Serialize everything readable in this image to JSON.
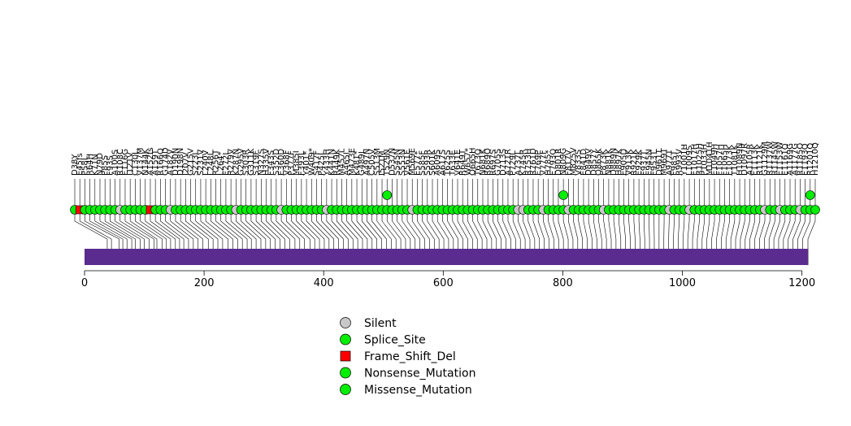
{
  "chart_data": {
    "type": "lollipop",
    "xlim": [
      0,
      1210
    ],
    "xticks": [
      0,
      200,
      400,
      600,
      800,
      1000,
      1200
    ],
    "colors": {
      "Silent": "#c8c8c8",
      "Splice_Site": "#00ee00",
      "Frame_Shift_Del": "#ff0000",
      "Nonsense_Mutation": "#00ee00",
      "Missense_Mutation": "#00ee00",
      "domain": "#5b2c8f"
    },
    "legend": [
      {
        "label": "Silent",
        "shape": "circle",
        "color": "#c8c8c8"
      },
      {
        "label": "Splice_Site",
        "shape": "circle",
        "color": "#00ee00"
      },
      {
        "label": "Frame_Shift_Del",
        "shape": "square",
        "color": "#ff0000"
      },
      {
        "label": "Nonsense_Mutation",
        "shape": "circle",
        "color": "#00ee00"
      },
      {
        "label": "Missense_Mutation",
        "shape": "circle",
        "color": "#00ee00"
      }
    ],
    "highlights": [
      {
        "position": 528,
        "type": "Missense_Mutation"
      },
      {
        "position": 808,
        "type": "Missense_Mutation"
      },
      {
        "position": 1200,
        "type": "Missense_Mutation"
      }
    ],
    "mutations": [
      {
        "position": 38,
        "label": "D38Y",
        "type": "Missense_Mutation"
      },
      {
        "position": 45,
        "label": "E45fs",
        "type": "Frame_Shift_Del"
      },
      {
        "position": 58,
        "label": "P58L",
        "type": "Missense_Mutation"
      },
      {
        "position": 64,
        "label": "R64H",
        "type": "Missense_Mutation"
      },
      {
        "position": 71,
        "label": "K71N",
        "type": "Missense_Mutation"
      },
      {
        "position": 79,
        "label": "N79D",
        "type": "Missense_Mutation"
      },
      {
        "position": 85,
        "label": "P85S",
        "type": "Missense_Mutation"
      },
      {
        "position": 93,
        "label": "F93S",
        "type": "Missense_Mutation"
      },
      {
        "position": 100,
        "label": "A100S",
        "type": "Missense_Mutation"
      },
      {
        "position": 108,
        "label": "R108C",
        "type": "Silent"
      },
      {
        "position": 116,
        "label": "E116G",
        "type": "Missense_Mutation"
      },
      {
        "position": 121,
        "label": "I121V",
        "type": "Missense_Mutation"
      },
      {
        "position": 130,
        "label": "C130L",
        "type": "Missense_Mutation"
      },
      {
        "position": 137,
        "label": "V137M",
        "type": "Missense_Mutation"
      },
      {
        "position": 144,
        "label": "N144K",
        "type": "Missense_Mutation"
      },
      {
        "position": 152,
        "label": "A152fs",
        "type": "Frame_Shift_Del"
      },
      {
        "position": 159,
        "label": "A159T",
        "type": "Missense_Mutation"
      },
      {
        "position": 166,
        "label": "R166Q",
        "type": "Missense_Mutation"
      },
      {
        "position": 174,
        "label": "G174D",
        "type": "Missense_Mutation"
      },
      {
        "position": 182,
        "label": "A182V",
        "type": "Silent"
      },
      {
        "position": 190,
        "label": "D190N",
        "type": "Missense_Mutation"
      },
      {
        "position": 198,
        "label": "D198N",
        "type": "Missense_Mutation"
      },
      {
        "position": 207,
        "label": "I207V",
        "type": "Missense_Mutation"
      },
      {
        "position": 215,
        "label": "G215V",
        "type": "Missense_Mutation"
      },
      {
        "position": 223,
        "label": "S223L",
        "type": "Missense_Mutation"
      },
      {
        "position": 231,
        "label": "S231V",
        "type": "Missense_Mutation"
      },
      {
        "position": 240,
        "label": "L240V",
        "type": "Missense_Mutation"
      },
      {
        "position": 248,
        "label": "L248L",
        "type": "Missense_Mutation"
      },
      {
        "position": 256,
        "label": "R256T",
        "type": "Missense_Mutation"
      },
      {
        "position": 264,
        "label": "L264*",
        "type": "Nonsense_Mutation"
      },
      {
        "position": 272,
        "label": "E272L",
        "type": "Missense_Mutation"
      },
      {
        "position": 279,
        "label": "R279V",
        "type": "Missense_Mutation"
      },
      {
        "position": 287,
        "label": "K287N",
        "type": "Silent"
      },
      {
        "position": 295,
        "label": "G295V",
        "type": "Missense_Mutation"
      },
      {
        "position": 303,
        "label": "S303R",
        "type": "Missense_Mutation"
      },
      {
        "position": 311,
        "label": "G311K",
        "type": "Missense_Mutation"
      },
      {
        "position": 319,
        "label": "S319F",
        "type": "Missense_Mutation"
      },
      {
        "position": 327,
        "label": "N327S",
        "type": "Missense_Mutation"
      },
      {
        "position": 335,
        "label": "H335V",
        "type": "Missense_Mutation"
      },
      {
        "position": 343,
        "label": "F343S",
        "type": "Missense_Mutation"
      },
      {
        "position": 352,
        "label": "S352D",
        "type": "Missense_Mutation"
      },
      {
        "position": 360,
        "label": "E360D",
        "type": "Silent"
      },
      {
        "position": 368,
        "label": "V368F",
        "type": "Missense_Mutation"
      },
      {
        "position": 377,
        "label": "P377F",
        "type": "Missense_Mutation"
      },
      {
        "position": 385,
        "label": "M385I",
        "type": "Missense_Mutation"
      },
      {
        "position": 393,
        "label": "F393L",
        "type": "Missense_Mutation"
      },
      {
        "position": 401,
        "label": "Y401*",
        "type": "Nonsense_Mutation"
      },
      {
        "position": 409,
        "label": "W409*",
        "type": "Nonsense_Mutation"
      },
      {
        "position": 417,
        "label": "S417F",
        "type": "Missense_Mutation"
      },
      {
        "position": 425,
        "label": "P425L",
        "type": "Missense_Mutation"
      },
      {
        "position": 433,
        "label": "Y433H",
        "type": "Silent"
      },
      {
        "position": 441,
        "label": "K441N",
        "type": "Missense_Mutation"
      },
      {
        "position": 449,
        "label": "R449K",
        "type": "Missense_Mutation"
      },
      {
        "position": 457,
        "label": "M457L",
        "type": "Missense_Mutation"
      },
      {
        "position": 465,
        "label": "A465I",
        "type": "Missense_Mutation"
      },
      {
        "position": 473,
        "label": "M473E",
        "type": "Missense_Mutation"
      },
      {
        "position": 481,
        "label": "K481*",
        "type": "Nonsense_Mutation"
      },
      {
        "position": 489,
        "label": "G489L",
        "type": "Missense_Mutation"
      },
      {
        "position": 497,
        "label": "A497N",
        "type": "Missense_Mutation"
      },
      {
        "position": 505,
        "label": "C505V",
        "type": "Missense_Mutation"
      },
      {
        "position": 513,
        "label": "S513M",
        "type": "Missense_Mutation"
      },
      {
        "position": 521,
        "label": "I521M",
        "type": "Missense_Mutation"
      },
      {
        "position": 529,
        "label": "T529N",
        "type": "Missense_Mutation"
      },
      {
        "position": 537,
        "label": "D537N",
        "type": "Missense_Mutation"
      },
      {
        "position": 545,
        "label": "S545N",
        "type": "Missense_Mutation"
      },
      {
        "position": 553,
        "label": "S553N",
        "type": "Missense_Mutation"
      },
      {
        "position": 561,
        "label": "V561E",
        "type": "Missense_Mutation"
      },
      {
        "position": 569,
        "label": "M569E",
        "type": "Silent"
      },
      {
        "position": 577,
        "label": "E577*",
        "type": "Nonsense_Mutation"
      },
      {
        "position": 585,
        "label": "S585F",
        "type": "Missense_Mutation"
      },
      {
        "position": 593,
        "label": "S593R",
        "type": "Missense_Mutation"
      },
      {
        "position": 601,
        "label": "S601K",
        "type": "Missense_Mutation"
      },
      {
        "position": 609,
        "label": "A609S",
        "type": "Missense_Mutation"
      },
      {
        "position": 617,
        "label": "A617S",
        "type": "Missense_Mutation"
      },
      {
        "position": 625,
        "label": "T625S",
        "type": "Missense_Mutation"
      },
      {
        "position": 633,
        "label": "T633E",
        "type": "Missense_Mutation"
      },
      {
        "position": 641,
        "label": "V641E",
        "type": "Missense_Mutation"
      },
      {
        "position": 649,
        "label": "R649T",
        "type": "Missense_Mutation"
      },
      {
        "position": 657,
        "label": "W657*",
        "type": "Nonsense_Mutation"
      },
      {
        "position": 665,
        "label": "Q665H",
        "type": "Missense_Mutation"
      },
      {
        "position": 673,
        "label": "T673Q",
        "type": "Missense_Mutation"
      },
      {
        "position": 681,
        "label": "N681K",
        "type": "Missense_Mutation"
      },
      {
        "position": 689,
        "label": "R689Q",
        "type": "Missense_Mutation"
      },
      {
        "position": 697,
        "label": "R697S",
        "type": "Missense_Mutation"
      },
      {
        "position": 705,
        "label": "G705S",
        "type": "Missense_Mutation"
      },
      {
        "position": 713,
        "label": "D713S",
        "type": "Missense_Mutation"
      },
      {
        "position": 721,
        "label": "A721R",
        "type": "Missense_Mutation"
      },
      {
        "position": 729,
        "label": "P729L",
        "type": "Missense_Mutation"
      },
      {
        "position": 737,
        "label": "A737L",
        "type": "Silent"
      },
      {
        "position": 745,
        "label": "K745R",
        "type": "Silent"
      },
      {
        "position": 753,
        "label": "R753H",
        "type": "Missense_Mutation"
      },
      {
        "position": 761,
        "label": "R761D",
        "type": "Missense_Mutation"
      },
      {
        "position": 769,
        "label": "E769P",
        "type": "Missense_Mutation"
      },
      {
        "position": 777,
        "label": "V777F",
        "type": "Silent"
      },
      {
        "position": 785,
        "label": "H785*",
        "type": "Nonsense_Mutation"
      },
      {
        "position": 793,
        "label": "E793Q",
        "type": "Missense_Mutation"
      },
      {
        "position": 801,
        "label": "D801R",
        "type": "Missense_Mutation"
      },
      {
        "position": 809,
        "label": "N809G",
        "type": "Missense_Mutation"
      },
      {
        "position": 817,
        "label": "F817V",
        "type": "Silent"
      },
      {
        "position": 825,
        "label": "M825V",
        "type": "Missense_Mutation"
      },
      {
        "position": 833,
        "label": "V833S",
        "type": "Missense_Mutation"
      },
      {
        "position": 841,
        "label": "E841D",
        "type": "Missense_Mutation"
      },
      {
        "position": 849,
        "label": "D849V",
        "type": "Missense_Mutation"
      },
      {
        "position": 857,
        "label": "D857Y",
        "type": "Missense_Mutation"
      },
      {
        "position": 865,
        "label": "Q865K",
        "type": "Missense_Mutation"
      },
      {
        "position": 873,
        "label": "E873K",
        "type": "Silent"
      },
      {
        "position": 881,
        "label": "N881K",
        "type": "Missense_Mutation"
      },
      {
        "position": 889,
        "label": "D889N",
        "type": "Missense_Mutation"
      },
      {
        "position": 897,
        "label": "H897K",
        "type": "Missense_Mutation"
      },
      {
        "position": 905,
        "label": "E905D",
        "type": "Missense_Mutation"
      },
      {
        "position": 913,
        "label": "V913K",
        "type": "Missense_Mutation"
      },
      {
        "position": 921,
        "label": "R921K",
        "type": "Missense_Mutation"
      },
      {
        "position": 929,
        "label": "E929K",
        "type": "Missense_Mutation"
      },
      {
        "position": 937,
        "label": "F937T",
        "type": "Missense_Mutation"
      },
      {
        "position": 945,
        "label": "E945N",
        "type": "Missense_Mutation"
      },
      {
        "position": 953,
        "label": "F953T",
        "type": "Missense_Mutation"
      },
      {
        "position": 961,
        "label": "D961T",
        "type": "Missense_Mutation"
      },
      {
        "position": 969,
        "label": "M969T",
        "type": "Missense_Mutation"
      },
      {
        "position": 977,
        "label": "A977T",
        "type": "Silent"
      },
      {
        "position": 985,
        "label": "F985T",
        "type": "Missense_Mutation"
      },
      {
        "position": 993,
        "label": "R993V",
        "type": "Missense_Mutation"
      },
      {
        "position": 1001,
        "label": "Y1001H",
        "type": "Missense_Mutation"
      },
      {
        "position": 1009,
        "label": "L1009S",
        "type": "Silent"
      },
      {
        "position": 1017,
        "label": "E1017H",
        "type": "Missense_Mutation"
      },
      {
        "position": 1025,
        "label": "R1025H",
        "type": "Missense_Mutation"
      },
      {
        "position": 1033,
        "label": "P1033H",
        "type": "Missense_Mutation"
      },
      {
        "position": 1041,
        "label": "M1041H",
        "type": "Missense_Mutation"
      },
      {
        "position": 1049,
        "label": "E1049H",
        "type": "Missense_Mutation"
      },
      {
        "position": 1057,
        "label": "F1057H",
        "type": "Missense_Mutation"
      },
      {
        "position": 1065,
        "label": "F1065H",
        "type": "Missense_Mutation"
      },
      {
        "position": 1073,
        "label": "F1073K",
        "type": "Missense_Mutation"
      },
      {
        "position": 1081,
        "label": "T1081K",
        "type": "Missense_Mutation"
      },
      {
        "position": 1089,
        "label": "H1089N",
        "type": "Missense_Mutation"
      },
      {
        "position": 1097,
        "label": "D1097R",
        "type": "Missense_Mutation"
      },
      {
        "position": 1105,
        "label": "A1105R",
        "type": "Missense_Mutation"
      },
      {
        "position": 1113,
        "label": "E1113K",
        "type": "Missense_Mutation"
      },
      {
        "position": 1121,
        "label": "R1121K",
        "type": "Missense_Mutation"
      },
      {
        "position": 1129,
        "label": "G1129M",
        "type": "Silent"
      },
      {
        "position": 1137,
        "label": "R1137W",
        "type": "Missense_Mutation"
      },
      {
        "position": 1145,
        "label": "R1145W",
        "type": "Missense_Mutation"
      },
      {
        "position": 1153,
        "label": "E1153W",
        "type": "Silent"
      },
      {
        "position": 1161,
        "label": "E1161Q",
        "type": "Missense_Mutation"
      },
      {
        "position": 1169,
        "label": "A1169G",
        "type": "Missense_Mutation"
      },
      {
        "position": 1177,
        "label": "A1177G",
        "type": "Missense_Mutation"
      },
      {
        "position": 1185,
        "label": "R1185Q",
        "type": "Silent"
      },
      {
        "position": 1193,
        "label": "E1193Q",
        "type": "Missense_Mutation"
      },
      {
        "position": 1201,
        "label": "R1201Q",
        "type": "Missense_Mutation"
      },
      {
        "position": 1210,
        "label": "H1210Q",
        "type": "Missense_Mutation"
      }
    ]
  }
}
